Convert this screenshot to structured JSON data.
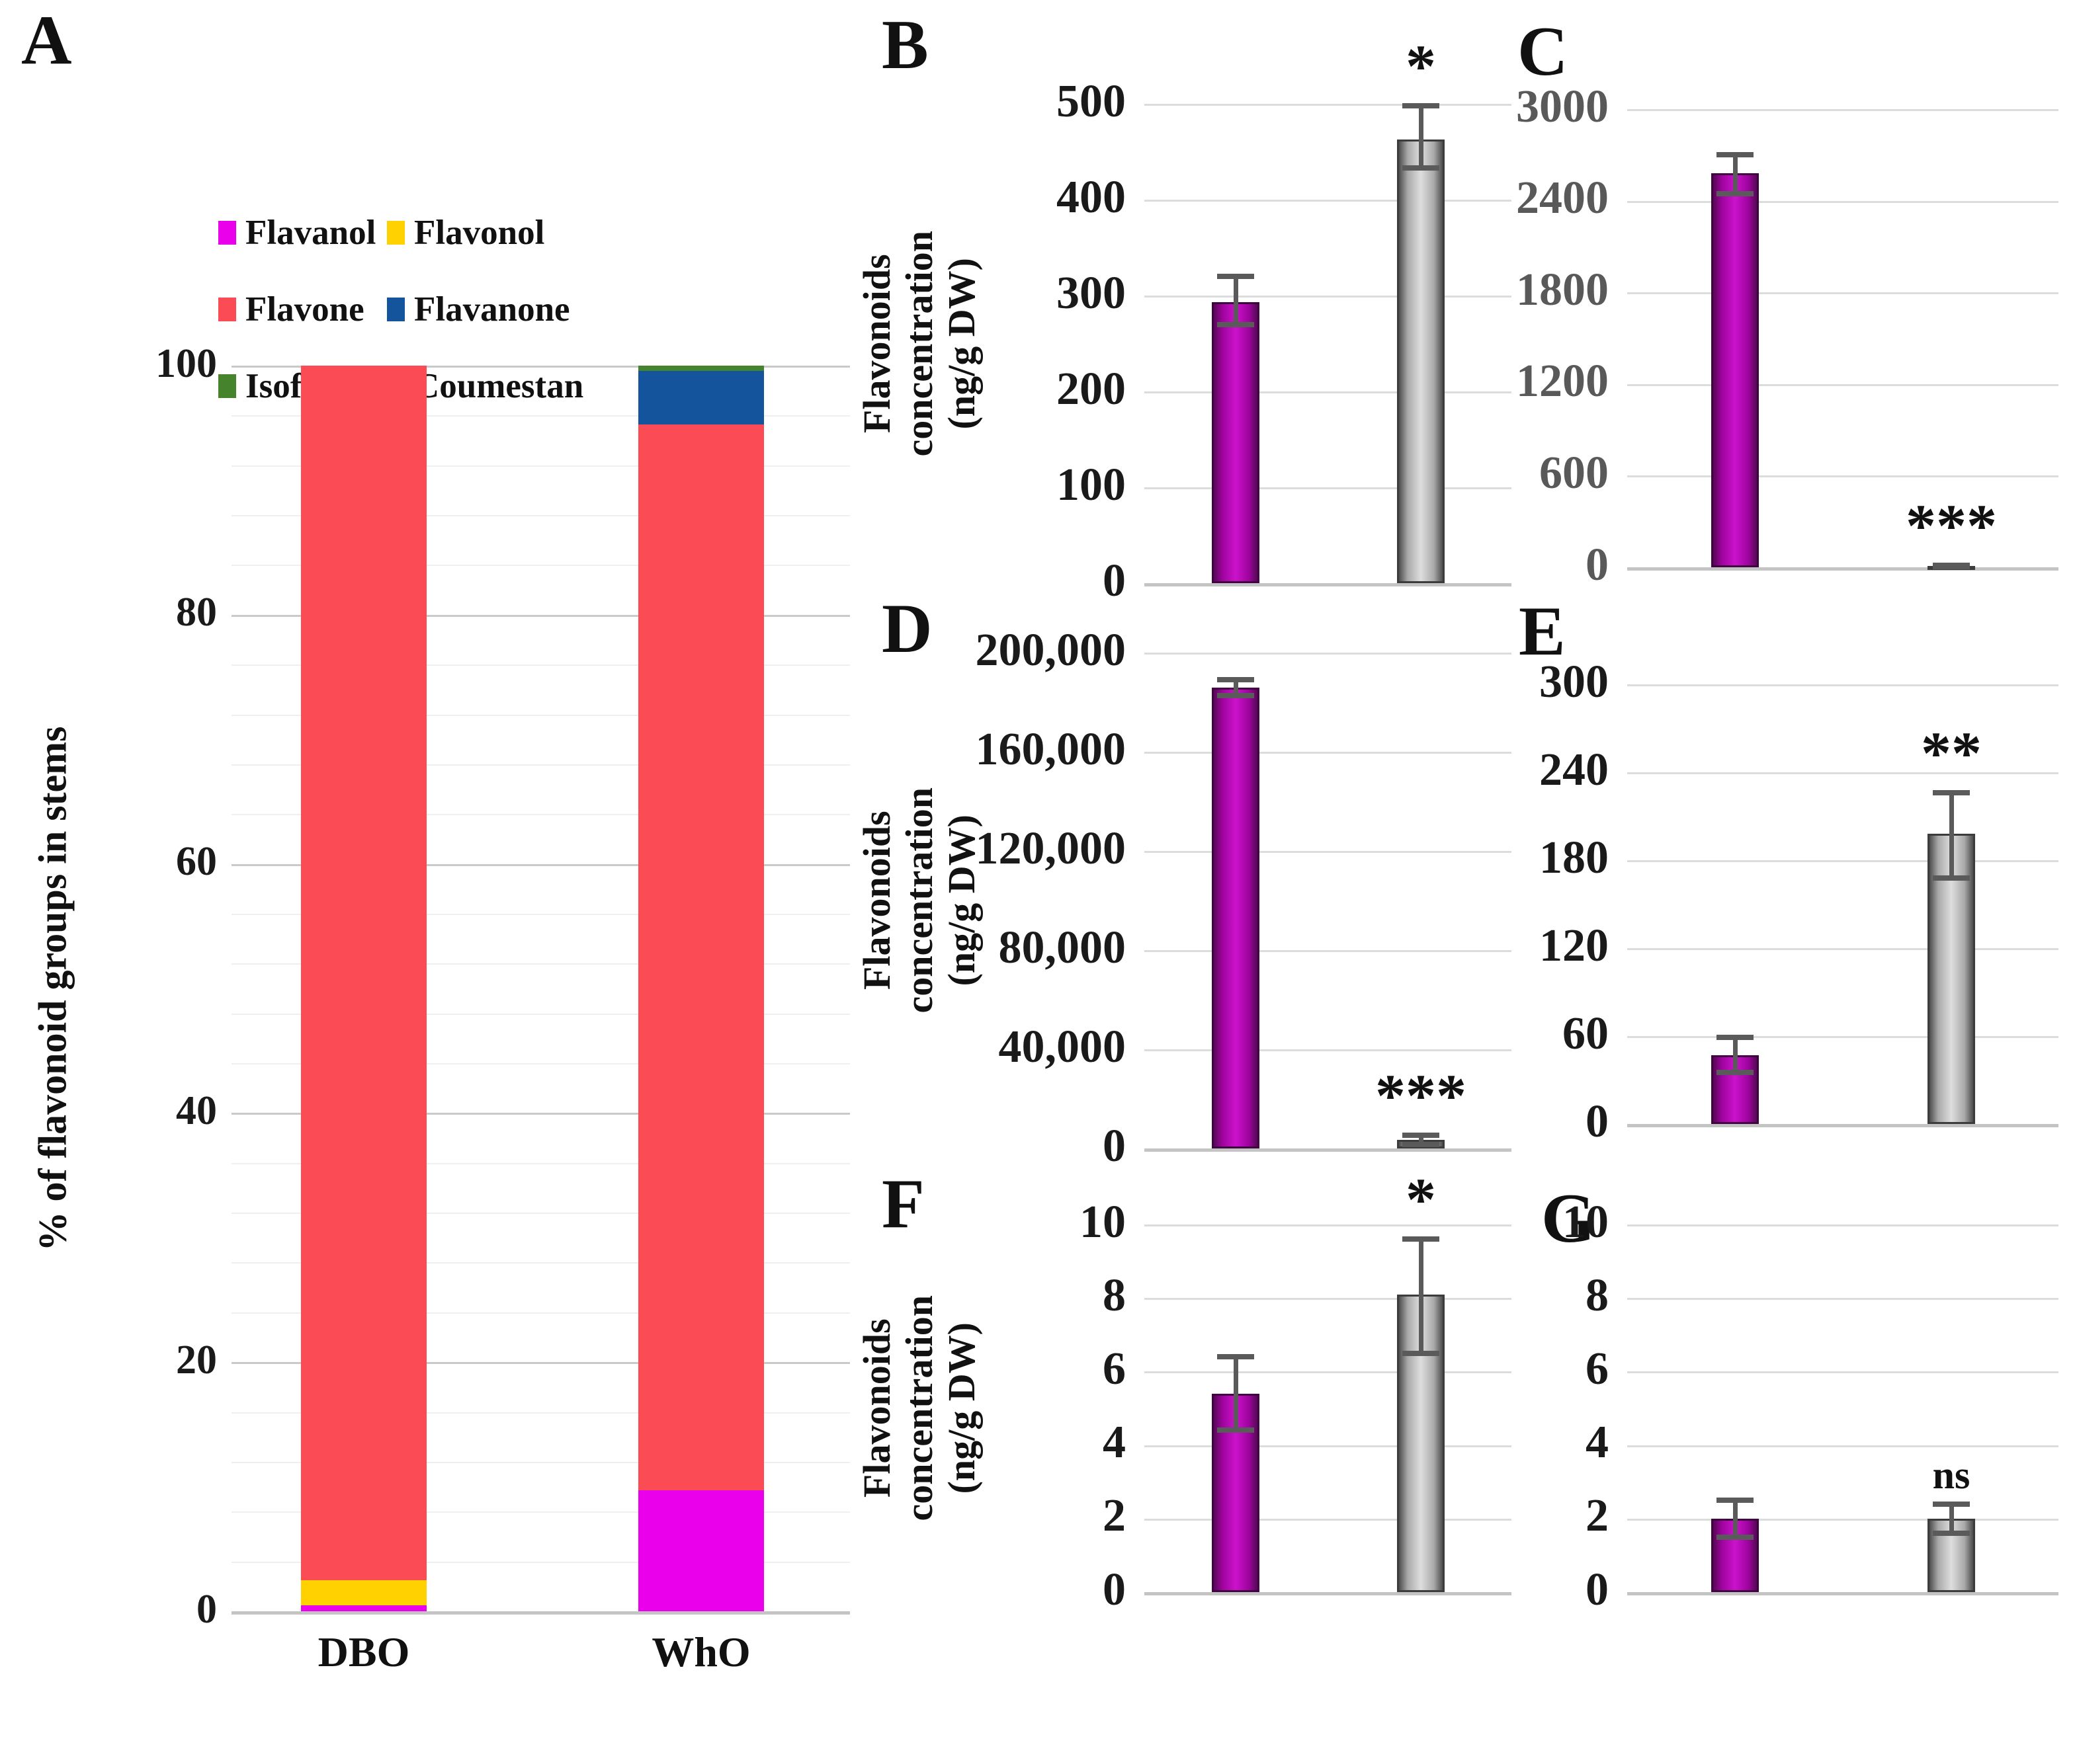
{
  "panel_letters": {
    "a": "A",
    "b": "B",
    "c": "C",
    "d": "D",
    "e": "E",
    "f": "F",
    "g": "G"
  },
  "legend": {
    "items": [
      {
        "label": "Flavanol",
        "color": "#EA00EA"
      },
      {
        "label": "Flavonol",
        "color": "#FFD100"
      },
      {
        "label": "Flavone",
        "color": "#FB4B55"
      },
      {
        "label": "Flavanone",
        "color": "#14549C"
      },
      {
        "label": "Isoflavone",
        "color": "#45842D"
      },
      {
        "label": "Coumestan",
        "color": "#B2B2B2"
      }
    ]
  },
  "axis_titles": {
    "panel_a": "% of flavonoid groups in stems",
    "flavonoids_line1": "Flavonoids",
    "flavonoids_line2": "concentration",
    "flavonoids_line3": "(ng/g DW)"
  },
  "colors": {
    "purple_bar_center": "#cb12cb",
    "purple_bar_edge": "#560856",
    "gray_bar_center": "#dedede",
    "gray_bar_edge": "#4d4d4d",
    "error_bar": "#5a5a5a",
    "gridline": "#dcdcdc",
    "tick_text_default": "#1a1a1a",
    "tick_text_panel_c": "#595959"
  },
  "chart_data": [
    {
      "id": "A",
      "type": "bar",
      "subtype": "stacked-percent",
      "ylabel": "% of flavonoid groups in stems",
      "categories": [
        "DBO",
        "WhO"
      ],
      "series": [
        {
          "name": "Flavanol",
          "color": "#EA00EA",
          "values": [
            0.5,
            9.7
          ]
        },
        {
          "name": "Flavonol",
          "color": "#FFD100",
          "values": [
            2.0,
            0
          ]
        },
        {
          "name": "Flavone",
          "color": "#FB4B55",
          "values": [
            97.5,
            85.6
          ]
        },
        {
          "name": "Flavanone",
          "color": "#14549C",
          "values": [
            0,
            4.3
          ]
        },
        {
          "name": "Isoflavone",
          "color": "#45842D",
          "values": [
            0,
            0.4
          ]
        },
        {
          "name": "Coumestan",
          "color": "#B2B2B2",
          "values": [
            0,
            0
          ]
        }
      ],
      "ylim": [
        0,
        100
      ],
      "yticks": [
        "0",
        "20",
        "40",
        "60",
        "80",
        "100"
      ],
      "minor_grid_step": 4,
      "grid": true,
      "legend_position": "top"
    },
    {
      "id": "B",
      "type": "bar",
      "ylabel": "Flavonoids concentration (ng/g DW)",
      "ylim": [
        0,
        500
      ],
      "yticks": [
        "0",
        "100",
        "200",
        "300",
        "400",
        "500"
      ],
      "grid": true,
      "bars": [
        {
          "color": "purple",
          "value": 293,
          "err_low": 270,
          "err_high": 320,
          "sig": ""
        },
        {
          "color": "gray",
          "value": 463,
          "err_low": 433,
          "err_high": 498,
          "sig": "*"
        }
      ]
    },
    {
      "id": "C",
      "type": "bar",
      "ylabel": "",
      "ylim": [
        0,
        3000
      ],
      "yticks": [
        "0",
        "600",
        "1200",
        "1800",
        "2400",
        "3000"
      ],
      "grid": true,
      "tick_color": "#595959",
      "bars": [
        {
          "color": "purple",
          "value": 2580,
          "err_low": 2445,
          "err_high": 2700,
          "sig": ""
        },
        {
          "color": "gray",
          "value": 8,
          "err_low": 3,
          "err_high": 13,
          "sig": "***"
        }
      ]
    },
    {
      "id": "D",
      "type": "bar",
      "ylabel": "Flavonoids concentration (ng/g DW)",
      "ylim": [
        0,
        200000
      ],
      "yticks": [
        "0",
        "40,000",
        "80,000",
        "120,000",
        "160,000",
        "200,000"
      ],
      "grid": true,
      "bars": [
        {
          "color": "purple",
          "value": 186000,
          "err_low": 182800,
          "err_high": 189200,
          "sig": ""
        },
        {
          "color": "gray",
          "value": 3500,
          "err_low": 1600,
          "err_high": 5400,
          "sig": "***"
        }
      ]
    },
    {
      "id": "E",
      "type": "bar",
      "ylabel": "",
      "ylim": [
        0,
        300
      ],
      "yticks": [
        "0",
        "60",
        "120",
        "180",
        "240",
        "300"
      ],
      "grid": true,
      "bars": [
        {
          "color": "purple",
          "value": 47,
          "err_low": 35,
          "err_high": 59,
          "sig": ""
        },
        {
          "color": "gray",
          "value": 198,
          "err_low": 168,
          "err_high": 226,
          "sig": "**"
        }
      ]
    },
    {
      "id": "F",
      "type": "bar",
      "ylabel": "Flavonoids concentration (ng/g DW)",
      "ylim": [
        0,
        10
      ],
      "yticks": [
        "0",
        "2",
        "4",
        "6",
        "8",
        "10"
      ],
      "grid": true,
      "bars": [
        {
          "color": "purple",
          "value": 5.4,
          "err_low": 4.4,
          "err_high": 6.4,
          "sig": ""
        },
        {
          "color": "gray",
          "value": 8.1,
          "err_low": 6.5,
          "err_high": 9.6,
          "sig": "*"
        }
      ]
    },
    {
      "id": "G",
      "type": "bar",
      "ylabel": "",
      "ylim": [
        0,
        10
      ],
      "yticks": [
        "0",
        "2",
        "4",
        "6",
        "8",
        "10"
      ],
      "grid": true,
      "bars": [
        {
          "color": "purple",
          "value": 2.0,
          "err_low": 1.5,
          "err_high": 2.5,
          "sig": ""
        },
        {
          "color": "gray",
          "value": 2.0,
          "err_low": 1.6,
          "err_high": 2.4,
          "sig": "ns"
        }
      ]
    }
  ]
}
